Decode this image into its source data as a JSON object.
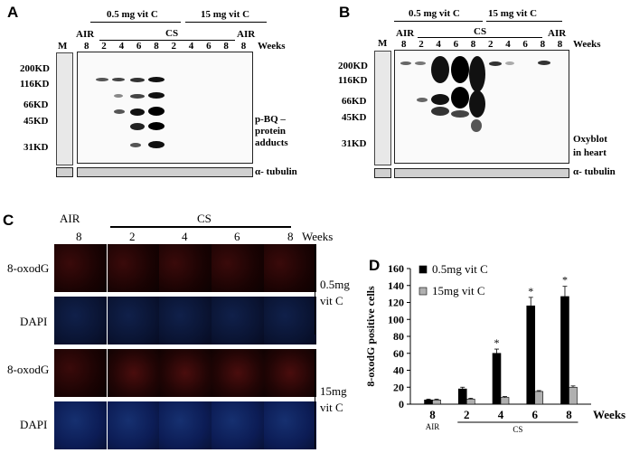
{
  "panel_a": {
    "letter": "A",
    "group_low": "0.5 mg vit C",
    "group_high": "15 mg vit C",
    "air_left": "AIR",
    "cs": "CS",
    "air_right": "AIR",
    "marker_lane": "M",
    "weeks": [
      "8",
      "2",
      "4",
      "6",
      "8",
      "2",
      "4",
      "6",
      "8",
      "8"
    ],
    "weeks_label": "Weeks",
    "mw": [
      "200KD",
      "116KD",
      "66KD",
      "45KD",
      "31KD"
    ],
    "annotation": [
      "p-BQ –",
      "protein",
      "adducts"
    ],
    "loading": "α- tubulin"
  },
  "panel_b": {
    "letter": "B",
    "group_low": "0.5 mg vit C",
    "group_high": "15 mg vit C",
    "air_left": "AIR",
    "cs": "CS",
    "air_right": "AIR",
    "marker_lane": "M",
    "weeks": [
      "8",
      "2",
      "4",
      "6",
      "8",
      "2",
      "4",
      "6",
      "8",
      "8"
    ],
    "weeks_label": "Weeks",
    "mw": [
      "200KD",
      "116KD",
      "66KD",
      "45KD",
      "31KD"
    ],
    "annotation": [
      "Oxyblot",
      "in heart"
    ],
    "loading": "α- tubulin"
  },
  "panel_c": {
    "letter": "C",
    "air": "AIR",
    "cs": "CS",
    "weeks": [
      "8",
      "2",
      "4",
      "6",
      "8"
    ],
    "weeks_label": "Weeks",
    "rows": [
      "8-oxodG",
      "DAPI",
      "8-oxodG",
      "DAPI"
    ],
    "dose_low": [
      "0.5mg",
      "vit C"
    ],
    "dose_high": [
      "15mg",
      "vit C"
    ]
  },
  "panel_d": {
    "letter": "D",
    "chart_data": {
      "type": "bar",
      "categories": [
        "8",
        "2",
        "4",
        "6",
        "8"
      ],
      "group_labels": [
        "AIR",
        "CS"
      ],
      "xlabel": "Weeks",
      "ylabel": "8-oxodG positive cells",
      "ylim": [
        0,
        160
      ],
      "yticks": [
        0,
        20,
        40,
        60,
        80,
        100,
        120,
        140,
        160
      ],
      "legend_position": "top-left",
      "significance_marker": "*",
      "series": [
        {
          "name": "0.5mg vit C",
          "color": "#000000",
          "values": [
            5,
            18,
            60,
            116,
            127
          ],
          "errors": [
            1,
            2,
            5,
            10,
            12
          ],
          "significant": [
            false,
            false,
            true,
            true,
            true
          ]
        },
        {
          "name": "15mg vit C",
          "color": "#b0b0b0",
          "values": [
            5,
            6,
            8,
            15,
            20
          ],
          "errors": [
            1,
            1,
            1,
            1,
            1.5
          ],
          "significant": [
            false,
            false,
            false,
            false,
            false
          ]
        }
      ]
    }
  }
}
